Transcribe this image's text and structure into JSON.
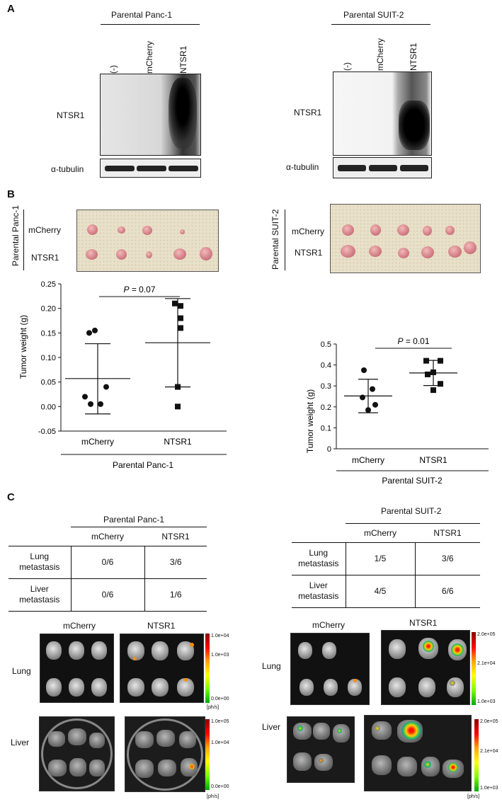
{
  "panels": {
    "a": "A",
    "b": "B",
    "c": "C"
  },
  "panelA": {
    "left": {
      "title": "Parental Panc-1",
      "lanes": [
        "(-)",
        "mCherry",
        "NTSR1"
      ],
      "blot_label": "NTSR1",
      "loading_label": "α-tubulin"
    },
    "right": {
      "title": "Parental SUIT-2",
      "lanes": [
        "(-)",
        "mCherry",
        "NTSR1"
      ],
      "blot_label": "NTSR1",
      "loading_label": "α-tubulin"
    }
  },
  "panelB": {
    "left": {
      "side_label": "Parental Panc-1",
      "rows": [
        "mCherry",
        "NTSR1"
      ]
    },
    "right": {
      "side_label": "Parental SUIT-2",
      "rows": [
        "mCherry",
        "NTSR1"
      ]
    }
  },
  "chart_data": [
    {
      "type": "scatter",
      "ylabel": "Tumor weight (g)",
      "xlabel": "Parental Panc-1",
      "categories": [
        "mCherry",
        "NTSR1"
      ],
      "ylim": [
        -0.05,
        0.25
      ],
      "yticks": [
        "-0.05",
        "0.00",
        "0.05",
        "0.10",
        "0.15",
        "0.20",
        "0.25"
      ],
      "annotation": {
        "p_label": "P",
        "p_value": " = 0.07"
      },
      "series": [
        {
          "values": [
            0.15,
            0.155,
            0.02,
            0.005,
            0.005,
            0.04
          ],
          "mean": 0.057,
          "sd_low": -0.015,
          "sd_high": 0.128
        },
        {
          "values": [
            0.21,
            0.205,
            0.16,
            0.18,
            0.04,
            0.0
          ],
          "mean": 0.13,
          "sd_low": 0.04,
          "sd_high": 0.22
        }
      ]
    },
    {
      "type": "scatter",
      "ylabel": "Tumor weight (g)",
      "xlabel": "Parental SUIT-2",
      "categories": [
        "mCherry",
        "NTSR1"
      ],
      "ylim": [
        0,
        0.5
      ],
      "yticks": [
        "0",
        "0.1",
        "0.2",
        "0.3",
        "0.4",
        "0.5"
      ],
      "annotation": {
        "p_label": "P",
        "p_value": " = 0.01"
      },
      "series": [
        {
          "values": [
            0.375,
            0.285,
            0.245,
            0.21,
            0.185
          ],
          "mean": 0.252,
          "sd_low": 0.172,
          "sd_high": 0.332
        },
        {
          "values": [
            0.42,
            0.42,
            0.365,
            0.355,
            0.31,
            0.28
          ],
          "mean": 0.362,
          "sd_low": 0.302,
          "sd_high": 0.422
        }
      ]
    }
  ],
  "panelC": {
    "left_table": {
      "title": "Parental Panc-1",
      "cols": [
        "mCherry",
        "NTSR1"
      ],
      "rows": [
        {
          "label1": "Lung",
          "label2": "metastasis",
          "v": [
            "0/6",
            "3/6"
          ]
        },
        {
          "label1": "Liver",
          "label2": "metastasis",
          "v": [
            "0/6",
            "1/6"
          ]
        }
      ]
    },
    "right_table": {
      "title": "Parental SUIT-2",
      "cols": [
        "mCherry",
        "NTSR1"
      ],
      "rows": [
        {
          "label1": "Lung",
          "label2": "metastasis",
          "v": [
            "1/5",
            "3/6"
          ]
        },
        {
          "label1": "Liver",
          "label2": "metastasis",
          "v": [
            "4/5",
            "6/6"
          ]
        }
      ]
    },
    "imaging_left": {
      "cols": [
        "mCherry",
        "NTSR1"
      ],
      "rows": [
        "Lung",
        "Liver"
      ],
      "lung_scale": [
        "1.0e+04",
        "1.0e+03",
        "0.0e+00"
      ],
      "liver_scale": [
        "1.0e+05",
        "1.0e+04",
        "0.0e+00"
      ],
      "unit": "[ph/s]"
    },
    "imaging_right": {
      "cols": [
        "mCherry",
        "NTSR1"
      ],
      "rows": [
        "Lung",
        "Liver"
      ],
      "lung_scale": [
        "2.0e+05",
        "2.1e+04",
        "1.0e+03"
      ],
      "liver_scale": [
        "2.0e+05",
        "2.1e+04",
        "1.0e+03"
      ],
      "unit": "[ph/s]"
    }
  }
}
